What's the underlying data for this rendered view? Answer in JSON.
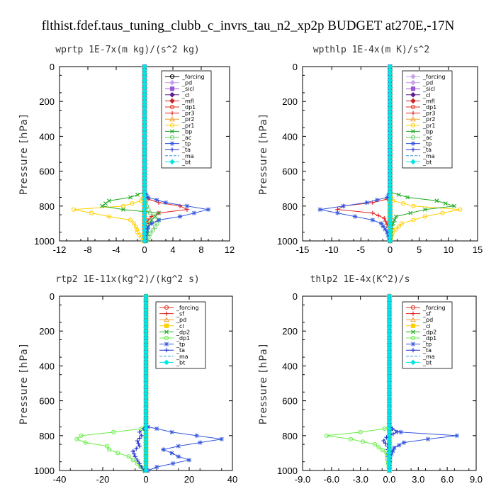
{
  "figure": {
    "title": "flthist.fdef.taus_tuning_clubb_c_invrs_tau_n2_xp2p  BUDGET at270E,-17N"
  },
  "chart_data": [
    {
      "type": "line",
      "title": "wprtp   1E-7x(m kg)/(s^2 kg)",
      "ylabel": "Pressure [hPa]",
      "xlim": [
        -12,
        12
      ],
      "ylim": [
        0,
        1000
      ],
      "y_inverted": true,
      "xticks": [
        "-12",
        "-8",
        "-4",
        "0",
        "4",
        "8",
        "12"
      ],
      "yticks": [
        "0",
        "200",
        "400",
        "600",
        "800",
        "1000"
      ],
      "legend": "top-right",
      "series": [
        {
          "name": "_forcing",
          "color": "#000000",
          "marker": "circle"
        },
        {
          "name": "_pd",
          "color": "#c8a2e8",
          "marker": "diamond"
        },
        {
          "name": "_sicl",
          "color": "#9b59d0",
          "marker": "square"
        },
        {
          "name": "_cl",
          "color": "#5a1f8a",
          "marker": "diamond"
        },
        {
          "name": "_mfl",
          "color": "#cc2222",
          "marker": "diamond"
        },
        {
          "name": "_dp1",
          "color": "#e0301e",
          "marker": "circle"
        },
        {
          "name": "_pr3",
          "color": "#e02020",
          "marker": "plus",
          "x": [
            0,
            0,
            0,
            0,
            0,
            0.5,
            2,
            5,
            6,
            2,
            1,
            0.5,
            0.3,
            0.2,
            0.1
          ],
          "y": [
            0,
            300,
            600,
            720,
            740,
            760,
            780,
            800,
            820,
            840,
            860,
            880,
            900,
            950,
            1000
          ]
        },
        {
          "name": "_pr2",
          "color": "#f0a030",
          "marker": "triangle"
        },
        {
          "name": "_pr1",
          "color": "#ffd000",
          "marker": "circle",
          "x": [
            0,
            0,
            0,
            0,
            -0.5,
            -3,
            -10,
            -5,
            -2,
            -1.5,
            -1.2,
            -1,
            -0.5,
            -0.2
          ],
          "y": [
            0,
            300,
            600,
            740,
            770,
            800,
            820,
            860,
            880,
            900,
            920,
            950,
            980,
            1000
          ]
        },
        {
          "name": "_bp",
          "color": "#22aa22",
          "marker": "x",
          "x": [
            0,
            0,
            0,
            0,
            -2,
            -5,
            -6,
            -3,
            2,
            1,
            0.5,
            0.2
          ],
          "y": [
            0,
            300,
            600,
            720,
            750,
            770,
            800,
            820,
            840,
            880,
            920,
            1000
          ]
        },
        {
          "name": "_ac",
          "color": "#66cc66",
          "marker": "circle",
          "x": [
            0,
            0,
            0,
            0,
            0.3,
            0.8,
            1.5,
            2,
            1.5,
            0.8,
            0.3
          ],
          "y": [
            0,
            300,
            600,
            760,
            800,
            840,
            860,
            880,
            920,
            960,
            1000
          ]
        },
        {
          "name": "_tp",
          "color": "#3355dd",
          "marker": "star",
          "x": [
            0,
            0,
            0,
            0,
            0.5,
            3,
            9,
            5,
            2,
            1,
            0.5,
            0.2,
            0.1
          ],
          "y": [
            0,
            300,
            600,
            720,
            750,
            780,
            820,
            860,
            880,
            900,
            920,
            950,
            1000
          ]
        },
        {
          "name": "_ta",
          "color": "#2233cc",
          "marker": "plus"
        },
        {
          "name": "_ma",
          "color": "#3399dd",
          "marker": "none"
        },
        {
          "name": "_bt",
          "color": "#00e5e5",
          "marker": "diamond"
        }
      ]
    },
    {
      "type": "line",
      "title": "wpthlp   1E-4x(m K)/s^2",
      "ylabel": "Pressure [hPa]",
      "xlim": [
        -15,
        15
      ],
      "ylim": [
        0,
        1000
      ],
      "y_inverted": true,
      "xticks": [
        "-15",
        "-10",
        "-5",
        "0",
        "5",
        "10",
        "15"
      ],
      "yticks": [
        "0",
        "200",
        "400",
        "600",
        "800",
        "1000"
      ],
      "legend": "top-right",
      "series": [
        {
          "name": "_forcing",
          "color": "#c8a2e8",
          "marker": "diamond"
        },
        {
          "name": "_pd",
          "color": "#c8a2e8",
          "marker": "diamond"
        },
        {
          "name": "_sicl",
          "color": "#9b59d0",
          "marker": "square"
        },
        {
          "name": "_cl",
          "color": "#5a1f8a",
          "marker": "diamond"
        },
        {
          "name": "_mfl",
          "color": "#cc2222",
          "marker": "diamond"
        },
        {
          "name": "_dp1",
          "color": "#e0301e",
          "marker": "circle"
        },
        {
          "name": "_pr3",
          "color": "#e02020",
          "marker": "plus",
          "x": [
            0,
            0,
            0,
            0,
            0,
            -0.5,
            -3,
            -8,
            -9,
            -3,
            -1,
            -0.3,
            0
          ],
          "y": [
            0,
            300,
            600,
            720,
            740,
            760,
            780,
            800,
            820,
            840,
            870,
            920,
            1000
          ]
        },
        {
          "name": "_pr2",
          "color": "#f0a030",
          "marker": "triangle"
        },
        {
          "name": "_pr1",
          "color": "#ffd000",
          "marker": "circle",
          "x": [
            0,
            0,
            0,
            0,
            0.5,
            4,
            12,
            6,
            2,
            0.5,
            0
          ],
          "y": [
            0,
            300,
            600,
            740,
            770,
            800,
            820,
            860,
            900,
            950,
            1000
          ]
        },
        {
          "name": "_bp",
          "color": "#22aa22",
          "marker": "x",
          "x": [
            0,
            0,
            0,
            0,
            3,
            8,
            11,
            6,
            1,
            0.3,
            0
          ],
          "y": [
            0,
            300,
            600,
            720,
            750,
            770,
            800,
            820,
            860,
            920,
            1000
          ]
        },
        {
          "name": "_ac",
          "color": "#66cc66",
          "marker": "circle"
        },
        {
          "name": "_tp",
          "color": "#3355dd",
          "marker": "star",
          "x": [
            0,
            0,
            0,
            0,
            -0.5,
            -4,
            -12,
            -6,
            -3,
            -1.5,
            -0.5,
            0
          ],
          "y": [
            0,
            300,
            600,
            720,
            750,
            780,
            820,
            860,
            880,
            900,
            950,
            1000
          ]
        },
        {
          "name": "_ta",
          "color": "#2233cc",
          "marker": "plus"
        },
        {
          "name": "_ma",
          "color": "#3399dd",
          "marker": "none"
        },
        {
          "name": "_bt",
          "color": "#00e5e5",
          "marker": "diamond"
        }
      ]
    },
    {
      "type": "line",
      "title": "rtp2   1E-11x(kg^2)/(kg^2 s)",
      "ylabel": "Pressure [hPa]",
      "xlim": [
        -40,
        40
      ],
      "ylim": [
        0,
        1000
      ],
      "y_inverted": true,
      "xticks": [
        "-40",
        "-20",
        "0",
        "20",
        "40"
      ],
      "yticks": [
        "0",
        "200",
        "400",
        "600",
        "800",
        "1000"
      ],
      "legend": "top-right",
      "series": [
        {
          "name": "_forcing",
          "color": "#e03020",
          "marker": "circle"
        },
        {
          "name": "_sf",
          "color": "#e02020",
          "marker": "plus"
        },
        {
          "name": "_pd",
          "color": "#f0a030",
          "marker": "triangle"
        },
        {
          "name": "_cl",
          "color": "#ffd000",
          "marker": "square"
        },
        {
          "name": "_dp2",
          "color": "#22aa22",
          "marker": "x"
        },
        {
          "name": "_dp1",
          "color": "#66ee44",
          "marker": "circle",
          "x": [
            0,
            0,
            0,
            0,
            -2,
            -15,
            -30,
            -32,
            -28,
            -18,
            -17,
            -13,
            -8,
            -4,
            -1
          ],
          "y": [
            0,
            300,
            600,
            740,
            760,
            780,
            800,
            820,
            840,
            860,
            880,
            900,
            920,
            960,
            1000
          ]
        },
        {
          "name": "_tp",
          "color": "#3355dd",
          "marker": "star",
          "x": [
            0,
            0,
            0,
            0,
            1,
            5,
            12,
            35,
            25,
            15,
            8,
            12,
            15,
            20,
            5,
            1
          ],
          "y": [
            0,
            300,
            600,
            740,
            750,
            760,
            780,
            820,
            840,
            860,
            880,
            900,
            920,
            940,
            980,
            1000
          ]
        },
        {
          "name": "_ta",
          "color": "#2233cc",
          "marker": "plus",
          "x": [
            0,
            0,
            0,
            0,
            -1,
            -3,
            -2,
            -4,
            -3,
            -6,
            -5,
            -3,
            -1
          ],
          "y": [
            0,
            300,
            600,
            740,
            760,
            780,
            800,
            830,
            860,
            890,
            920,
            960,
            1000
          ]
        },
        {
          "name": "_ma",
          "color": "#3399dd",
          "marker": "none"
        },
        {
          "name": "_bt",
          "color": "#00e5e5",
          "marker": "diamond"
        }
      ]
    },
    {
      "type": "line",
      "title": "thlp2   1E-4x(K^2)/s",
      "ylabel": "Pressure [hPa]",
      "xlim": [
        -9,
        9
      ],
      "ylim": [
        0,
        1000
      ],
      "y_inverted": true,
      "xticks": [
        "-9.0",
        "-6.0",
        "-3.0",
        "0.0",
        "3.0",
        "6.0",
        "9.0"
      ],
      "yticks": [
        "0",
        "200",
        "400",
        "600",
        "800",
        "1000"
      ],
      "legend": "top-right",
      "series": [
        {
          "name": "_forcing",
          "color": "#e03020",
          "marker": "circle"
        },
        {
          "name": "_sf",
          "color": "#e02020",
          "marker": "plus"
        },
        {
          "name": "_pd",
          "color": "#f0a030",
          "marker": "triangle"
        },
        {
          "name": "_cl",
          "color": "#ffd000",
          "marker": "square"
        },
        {
          "name": "_dp2",
          "color": "#22aa22",
          "marker": "x"
        },
        {
          "name": "_dp1",
          "color": "#66ee44",
          "marker": "circle",
          "x": [
            0,
            0,
            0,
            0,
            -0.5,
            -3,
            -6.5,
            -4,
            -1.5,
            -0.3,
            0
          ],
          "y": [
            0,
            300,
            600,
            740,
            760,
            780,
            800,
            820,
            850,
            900,
            1000
          ]
        },
        {
          "name": "_tp",
          "color": "#3355dd",
          "marker": "star",
          "x": [
            0,
            0,
            0,
            0,
            0.2,
            1.2,
            7,
            4,
            1.5,
            0.5,
            0.1,
            0
          ],
          "y": [
            0,
            300,
            600,
            740,
            760,
            780,
            800,
            820,
            840,
            870,
            920,
            1000
          ]
        },
        {
          "name": "_ta",
          "color": "#2233cc",
          "marker": "plus",
          "x": [
            0,
            0,
            0,
            0,
            0.3,
            0.8,
            0.4,
            -0.3,
            -0.6,
            -0.2,
            0
          ],
          "y": [
            0,
            300,
            600,
            740,
            760,
            780,
            790,
            810,
            830,
            860,
            1000
          ]
        },
        {
          "name": "_ma",
          "color": "#3399dd",
          "marker": "none"
        },
        {
          "name": "_bt",
          "color": "#00e5e5",
          "marker": "diamond"
        }
      ]
    }
  ]
}
